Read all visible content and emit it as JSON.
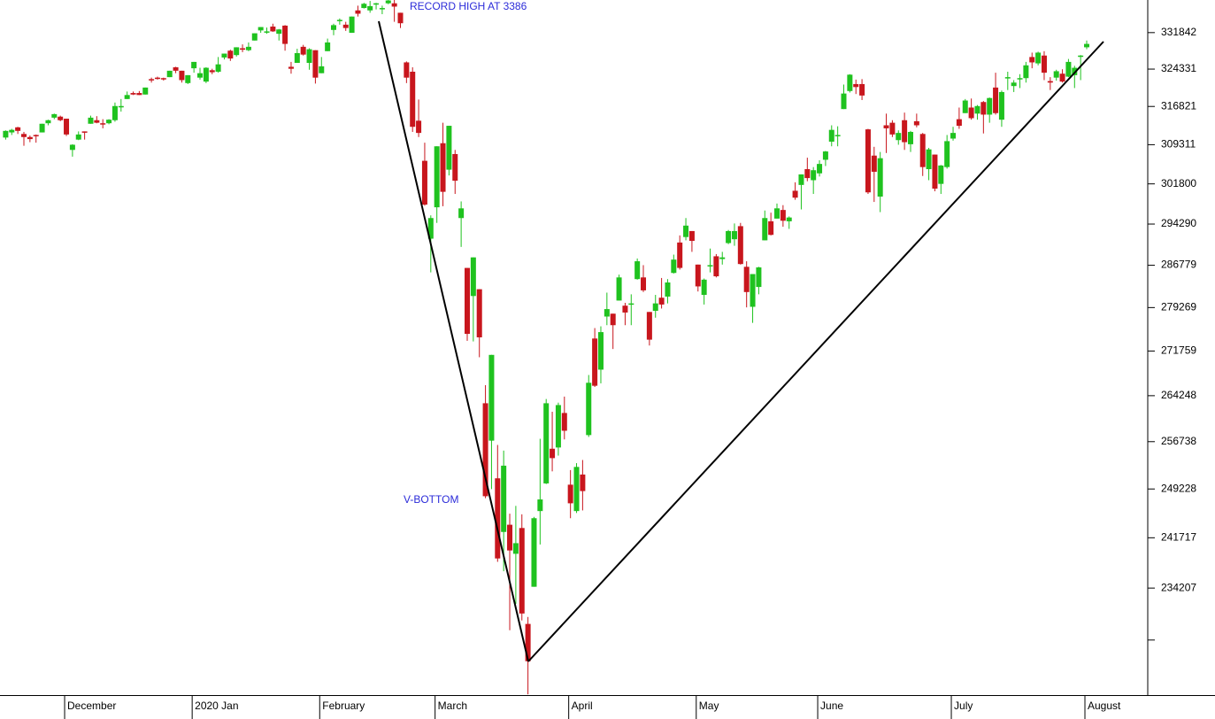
{
  "chart_data": {
    "type": "candlestick",
    "annotations": [
      "RECORD HIGH AT 3386",
      "V-BOTTOM"
    ],
    "log_scale": true,
    "up_color": "#1fc21f",
    "down_color": "#c8161d",
    "ylim": [
      219000,
      338700
    ],
    "yticks": [
      331842,
      324331,
      316821,
      309311,
      301800,
      294290,
      286779,
      279269,
      271759,
      264248,
      256738,
      249228,
      241717,
      234207
    ],
    "minor_yticks": [
      226697
    ],
    "categories": [
      null,
      null,
      null,
      null,
      null,
      null,
      null,
      null,
      null,
      null,
      "December",
      null,
      null,
      null,
      null,
      null,
      null,
      null,
      null,
      null,
      null,
      null,
      null,
      null,
      null,
      null,
      null,
      null,
      null,
      null,
      null,
      "2020 Jan",
      null,
      null,
      null,
      null,
      null,
      null,
      null,
      null,
      null,
      null,
      null,
      null,
      null,
      null,
      null,
      null,
      null,
      null,
      null,
      null,
      "February",
      null,
      null,
      null,
      null,
      null,
      null,
      null,
      null,
      null,
      null,
      null,
      null,
      null,
      null,
      null,
      null,
      null,
      null,
      "March",
      null,
      null,
      null,
      null,
      null,
      null,
      null,
      null,
      null,
      null,
      null,
      null,
      null,
      null,
      null,
      null,
      null,
      null,
      null,
      null,
      null,
      "April",
      null,
      null,
      null,
      null,
      null,
      null,
      null,
      null,
      null,
      null,
      null,
      null,
      null,
      null,
      null,
      null,
      null,
      null,
      null,
      null,
      "May",
      null,
      null,
      null,
      null,
      null,
      null,
      null,
      null,
      null,
      null,
      null,
      null,
      null,
      null,
      null,
      null,
      null,
      null,
      null,
      "June",
      null,
      null,
      null,
      null,
      null,
      null,
      null,
      null,
      null,
      null,
      null,
      null,
      null,
      null,
      null,
      null,
      null,
      null,
      null,
      null,
      null,
      "July",
      null,
      null,
      null,
      null,
      null,
      null,
      null,
      null,
      null,
      null,
      null,
      null,
      null,
      null,
      null,
      null,
      null,
      null,
      null,
      null,
      null,
      "August"
    ],
    "candles": [
      [
        310700,
        312100,
        310300,
        312000
      ],
      [
        311700,
        312400,
        311200,
        312200
      ],
      [
        312700,
        312800,
        311400,
        312000
      ],
      [
        311400,
        311800,
        309100,
        310800
      ],
      [
        310800,
        311100,
        309800,
        310400
      ],
      [
        311200,
        311300,
        309700,
        311000
      ],
      [
        311700,
        313400,
        311700,
        313400
      ],
      [
        313500,
        314200,
        313100,
        314100
      ],
      [
        314600,
        315400,
        314300,
        315300
      ],
      [
        314800,
        315000,
        313900,
        314100
      ],
      [
        314400,
        314400,
        311000,
        311300
      ],
      [
        308300,
        309400,
        307000,
        309300
      ],
      [
        310300,
        311900,
        310200,
        311300
      ],
      [
        311900,
        311900,
        310300,
        311700
      ],
      [
        313400,
        315000,
        313400,
        314600
      ],
      [
        314100,
        314900,
        313500,
        313600
      ],
      [
        313500,
        314300,
        312500,
        313300
      ],
      [
        313500,
        314300,
        313300,
        314200
      ],
      [
        314100,
        317600,
        313800,
        316900
      ],
      [
        316700,
        318300,
        315800,
        316900
      ],
      [
        318300,
        319800,
        318300,
        319100
      ],
      [
        319500,
        319800,
        319100,
        319200
      ],
      [
        319500,
        319900,
        319100,
        319100
      ],
      [
        319200,
        320600,
        319200,
        320600
      ],
      [
        322300,
        322600,
        321600,
        322100
      ],
      [
        322600,
        322800,
        322200,
        322400
      ],
      [
        322500,
        322600,
        322000,
        322300
      ],
      [
        322700,
        324000,
        322700,
        324000
      ],
      [
        324700,
        324800,
        323500,
        324000
      ],
      [
        324000,
        324000,
        321600,
        322100
      ],
      [
        321500,
        323100,
        321300,
        323100
      ],
      [
        324500,
        325800,
        323600,
        325800
      ],
      [
        322600,
        324600,
        322200,
        323500
      ],
      [
        321800,
        324700,
        321500,
        324600
      ],
      [
        324100,
        324400,
        323300,
        323700
      ],
      [
        323800,
        326800,
        323600,
        325300
      ],
      [
        326700,
        327500,
        326300,
        327500
      ],
      [
        328100,
        328300,
        326000,
        326500
      ],
      [
        327200,
        328800,
        326900,
        328800
      ],
      [
        328600,
        329400,
        327800,
        328300
      ],
      [
        328200,
        329800,
        328000,
        328900
      ],
      [
        330200,
        331700,
        330200,
        331700
      ],
      [
        332300,
        333000,
        331800,
        333000
      ],
      [
        332100,
        332900,
        331600,
        332100
      ],
      [
        333100,
        333700,
        332000,
        332100
      ],
      [
        331600,
        332600,
        330200,
        332500
      ],
      [
        333300,
        333400,
        328100,
        329500
      ],
      [
        324800,
        325800,
        323400,
        324400
      ],
      [
        325600,
        328500,
        325600,
        327600
      ],
      [
        328900,
        329300,
        327100,
        327300
      ],
      [
        325600,
        328600,
        324200,
        328400
      ],
      [
        328200,
        328200,
        321400,
        322600
      ],
      [
        323500,
        326800,
        323500,
        324900
      ],
      [
        328000,
        330600,
        328000,
        329800
      ],
      [
        332400,
        333700,
        331300,
        333400
      ],
      [
        334400,
        334800,
        333500,
        334500
      ],
      [
        333500,
        334100,
        332200,
        332800
      ],
      [
        331800,
        335200,
        331800,
        335200
      ],
      [
        336500,
        337500,
        335200,
        335800
      ],
      [
        337000,
        338100,
        336900,
        337900
      ],
      [
        336500,
        338500,
        336000,
        337400
      ],
      [
        337800,
        338100,
        336700,
        338000
      ],
      [
        337000,
        337500,
        335700,
        337000
      ],
      [
        338000,
        339300,
        337800,
        338600
      ],
      [
        338000,
        338900,
        334100,
        337300
      ],
      [
        336000,
        336000,
        332800,
        333800
      ],
      [
        325700,
        325900,
        321500,
        322600
      ],
      [
        323800,
        324700,
        311800,
        312800
      ],
      [
        314000,
        318200,
        310800,
        311600
      ],
      [
        306200,
        309700,
        297700,
        297900
      ],
      [
        291600,
        295900,
        285500,
        295400
      ],
      [
        297400,
        309000,
        294500,
        309000
      ],
      [
        309600,
        313600,
        297600,
        300300
      ],
      [
        304500,
        313000,
        303400,
        313000
      ],
      [
        307500,
        308300,
        299900,
        302400
      ],
      [
        295400,
        298500,
        290100,
        297200
      ],
      [
        286300,
        286300,
        273500,
        274700
      ],
      [
        281300,
        288200,
        273400,
        288200
      ],
      [
        282500,
        282500,
        270700,
        274100
      ],
      [
        263000,
        266000,
        247800,
        248100
      ],
      [
        256900,
        271100,
        249200,
        271100
      ],
      [
        250900,
        256200,
        238100,
        238600
      ],
      [
        242600,
        255300,
        236700,
        252900
      ],
      [
        243700,
        245400,
        228100,
        239800
      ],
      [
        239300,
        246600,
        231900,
        240900
      ],
      [
        243200,
        245300,
        229500,
        230500
      ],
      [
        229000,
        230000,
        219100,
        223700
      ],
      [
        234400,
        244900,
        234400,
        244700
      ],
      [
        245800,
        257200,
        240700,
        247600
      ],
      [
        250100,
        263700,
        250000,
        263000
      ],
      [
        255600,
        261600,
        252000,
        254100
      ],
      [
        255800,
        263100,
        254500,
        262700
      ],
      [
        261400,
        264100,
        257100,
        258500
      ],
      [
        249900,
        252200,
        244700,
        247000
      ],
      [
        245800,
        253300,
        245500,
        252700
      ],
      [
        251500,
        253800,
        245900,
        248900
      ],
      [
        257800,
        267700,
        257500,
        266400
      ],
      [
        273900,
        275700,
        265700,
        265900
      ],
      [
        268600,
        276000,
        266300,
        275000
      ],
      [
        277700,
        281900,
        276200,
        279000
      ],
      [
        278200,
        278200,
        272100,
        276200
      ],
      [
        280500,
        285100,
        280500,
        284600
      ],
      [
        279600,
        280100,
        276200,
        278400
      ],
      [
        280000,
        281600,
        276200,
        280000
      ],
      [
        284300,
        288000,
        284200,
        287500
      ],
      [
        284600,
        286800,
        282000,
        282300
      ],
      [
        278500,
        278500,
        272700,
        273700
      ],
      [
        278700,
        281500,
        277500,
        280000
      ],
      [
        281000,
        284500,
        279100,
        279800
      ],
      [
        281200,
        284300,
        280000,
        283700
      ],
      [
        285400,
        288700,
        285300,
        287800
      ],
      [
        290900,
        292200,
        286000,
        286300
      ],
      [
        291900,
        295400,
        291300,
        294000
      ],
      [
        293000,
        293000,
        289200,
        291200
      ],
      [
        286900,
        286900,
        282100,
        283000
      ],
      [
        281500,
        284400,
        279800,
        284200
      ],
      [
        286800,
        289800,
        285500,
        286800
      ],
      [
        288400,
        288800,
        284600,
        284800
      ],
      [
        287900,
        289200,
        286900,
        288200
      ],
      [
        290800,
        293200,
        290600,
        293000
      ],
      [
        291500,
        294400,
        290300,
        293000
      ],
      [
        293900,
        294500,
        286900,
        287000
      ],
      [
        286500,
        287500,
        279300,
        282000
      ],
      [
        279400,
        285200,
        276600,
        285200
      ],
      [
        282900,
        286500,
        281600,
        286400
      ],
      [
        291300,
        296800,
        291300,
        295400
      ],
      [
        294800,
        296400,
        292200,
        292300
      ],
      [
        295300,
        298100,
        295300,
        297200
      ],
      [
        296900,
        297800,
        293800,
        294900
      ],
      [
        294800,
        295700,
        293400,
        295500
      ],
      [
        300500,
        302100,
        298800,
        299200
      ],
      [
        301600,
        303600,
        297000,
        303600
      ],
      [
        304600,
        306800,
        302300,
        302900
      ],
      [
        302500,
        305000,
        299900,
        304400
      ],
      [
        303800,
        306300,
        303200,
        305600
      ],
      [
        306400,
        308100,
        305200,
        308000
      ],
      [
        309900,
        313100,
        309000,
        312200
      ],
      [
        311200,
        312900,
        309000,
        311200
      ],
      [
        316300,
        321200,
        316300,
        319400
      ],
      [
        319900,
        323300,
        319600,
        323200
      ],
      [
        321300,
        322200,
        319300,
        320700
      ],
      [
        321300,
        322300,
        318100,
        319000
      ],
      [
        312300,
        312400,
        299900,
        300200
      ],
      [
        307200,
        308900,
        298400,
        304100
      ],
      [
        299400,
        307900,
        296500,
        306700
      ],
      [
        313100,
        315400,
        307700,
        312500
      ],
      [
        313600,
        314100,
        310800,
        311300
      ],
      [
        310200,
        312100,
        309300,
        311600
      ],
      [
        314100,
        315600,
        308300,
        309800
      ],
      [
        309400,
        312000,
        307900,
        311800
      ],
      [
        313900,
        315400,
        312700,
        313100
      ],
      [
        311400,
        311600,
        303300,
        305000
      ],
      [
        304600,
        308700,
        302500,
        308400
      ],
      [
        307400,
        307400,
        300400,
        300900
      ],
      [
        301800,
        305400,
        299900,
        305300
      ],
      [
        305000,
        311200,
        304700,
        310000
      ],
      [
        310500,
        312800,
        310100,
        311600
      ],
      [
        314300,
        316600,
        312400,
        313000
      ],
      [
        315500,
        318300,
        315500,
        318000
      ],
      [
        316600,
        318400,
        314200,
        314500
      ],
      [
        315400,
        317100,
        314200,
        316900
      ],
      [
        317700,
        317900,
        311500,
        315200
      ],
      [
        315200,
        318600,
        313600,
        318500
      ],
      [
        320600,
        323600,
        315200,
        315500
      ],
      [
        314200,
        320000,
        312800,
        319700
      ],
      [
        322600,
        323800,
        320100,
        322700
      ],
      [
        320900,
        322100,
        319700,
        321600
      ],
      [
        322400,
        323300,
        320500,
        322500
      ],
      [
        322500,
        325800,
        321600,
        325100
      ],
      [
        326800,
        327700,
        324500,
        325700
      ],
      [
        325500,
        327900,
        325100,
        327700
      ],
      [
        327100,
        328000,
        322100,
        323600
      ],
      [
        321900,
        322700,
        320100,
        321600
      ],
      [
        322600,
        324200,
        322000,
        323900
      ],
      [
        323400,
        324300,
        321600,
        321800
      ],
      [
        322800,
        326400,
        322700,
        325800
      ],
      [
        323100,
        325000,
        320500,
        324600
      ],
      [
        327000,
        327200,
        322100,
        327100
      ],
      [
        328800,
        330200,
        328400,
        329500
      ]
    ]
  }
}
